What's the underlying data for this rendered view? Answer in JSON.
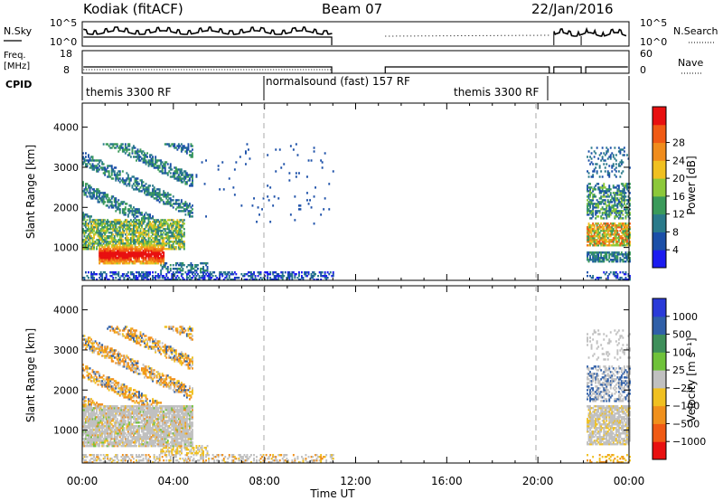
{
  "header": {
    "station": "Kodiak (fitACF)",
    "beam": "Beam 07",
    "date": "22/Jan/2016"
  },
  "labels": {
    "nsky": "N.Sky",
    "nsearch": "N.Search",
    "freq_line1": "Freq.",
    "freq_line2": "[MHz]",
    "nave": "Nave",
    "cpid": "CPID",
    "slant_range": "Slant Range [km]",
    "time_axis": "Time UT"
  },
  "noise_axis": {
    "left_ticks": [
      "10^5",
      "10^0"
    ],
    "right_ticks": [
      "10^5",
      "10^0"
    ]
  },
  "freq_axis": {
    "left_ticks": [
      "18",
      "8"
    ],
    "right_ticks": [
      "60",
      "0"
    ]
  },
  "cpid_segments": [
    {
      "label": "themis 3300 RF",
      "start_h": 0.0,
      "end_h": 8.0
    },
    {
      "label": "normalsound (fast) 157 RF",
      "start_h": 8.0,
      "end_h": 20.0
    },
    {
      "label": "themis 3300 RF",
      "start_h": 8.0,
      "end_h": 20.5
    },
    {
      "label": "",
      "start_h": 20.5,
      "end_h": 24.0
    }
  ],
  "chart_data": [
    {
      "type": "heatmap",
      "name": "Power",
      "xlabel": "Time UT",
      "ylabel": "Slant Range [km]",
      "xlim_hours": [
        0,
        24
      ],
      "ylim_km": [
        180,
        4600
      ],
      "x_ticks": [
        "00:00",
        "04:00",
        "08:00",
        "12:00",
        "16:00",
        "20:00",
        "00:00"
      ],
      "y_ticks": [
        1000,
        2000,
        3000,
        4000
      ],
      "colorbar": {
        "title": "Power [dB]",
        "ticks": [
          "4",
          "8",
          "12",
          "16",
          "20",
          "24",
          "28"
        ]
      },
      "vertical_dashed_lines_hours": [
        8.0,
        20.5
      ],
      "data_gap_hours": [
        [
          11.0,
          22.0
        ]
      ]
    },
    {
      "type": "heatmap",
      "name": "Velocity",
      "xlabel": "Time UT",
      "ylabel": "Slant Range [km]",
      "xlim_hours": [
        0,
        24
      ],
      "ylim_km": [
        180,
        4600
      ],
      "x_ticks": [
        "00:00",
        "04:00",
        "08:00",
        "12:00",
        "16:00",
        "20:00",
        "00:00"
      ],
      "y_ticks": [
        1000,
        2000,
        3000,
        4000
      ],
      "colorbar": {
        "title": "Velocity [m s⁻¹]",
        "ticks": [
          "1000",
          "500",
          "100",
          "25",
          "−25",
          "−100",
          "−500",
          "−1000"
        ]
      },
      "vertical_dashed_lines_hours": [
        8.0,
        20.5
      ],
      "data_gap_hours": [
        [
          11.0,
          22.0
        ]
      ]
    }
  ],
  "power_colors": [
    "#1c1cf0",
    "#1b4fa8",
    "#2a7a8a",
    "#3a9a5a",
    "#8cc83a",
    "#f0c020",
    "#f08c1c",
    "#f05a14",
    "#e81010"
  ],
  "velocity_colors": [
    "#2a3ad8",
    "#2f5fa8",
    "#3e8f5a",
    "#6fc23a",
    "#c0c0c0",
    "#f0c020",
    "#f0901c",
    "#f05a14",
    "#e81010"
  ]
}
